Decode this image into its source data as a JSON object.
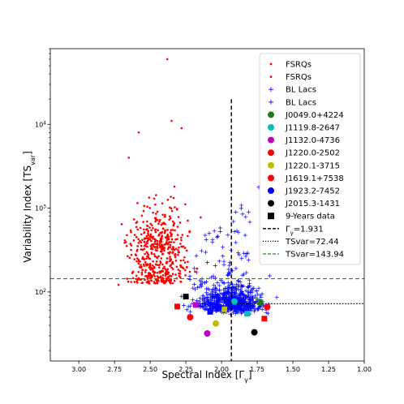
{
  "chart_data": {
    "type": "scatter",
    "xlabel": "Spectral Index [Γ",
    "xlabel_sub": "γ",
    "xlabel_end": "]",
    "ylabel": "Variability Index [TS",
    "ylabel_sub": "var",
    "ylabel_end": "]",
    "xlim": [
      3.2,
      1.0
    ],
    "ylim": [
      15,
      80000
    ],
    "y_scale": "log",
    "x_reversed": true,
    "grid": false,
    "legend_position": "top-right",
    "x_ticks": [
      "3.00",
      "2.75",
      "2.50",
      "2.25",
      "2.00",
      "1.75",
      "1.50",
      "1.25",
      "1.00"
    ],
    "x_tick_values": [
      3.0,
      2.75,
      2.5,
      2.25,
      2.0,
      1.75,
      1.5,
      1.25,
      1.0
    ],
    "y_ticks": [
      {
        "base": "10",
        "exp": "2",
        "value": 100
      },
      {
        "base": "10",
        "exp": "3",
        "value": 1000
      },
      {
        "base": "10",
        "exp": "4",
        "value": 10000
      }
    ],
    "lines": {
      "gamma_vertical": {
        "x": 1.931,
        "label": "Γγ=1.931",
        "label_main": "Γ",
        "label_sub": "γ",
        "label_rest": "=1.931",
        "color": "#000000",
        "style": "dashed"
      },
      "tsvar_72": {
        "y": 72.44,
        "x_from": 1.931,
        "label": "TSvar=72.44",
        "color": "#000000",
        "style": "dotted"
      },
      "tsvar_143": {
        "y": 143.94,
        "label": "TSvar=143.94",
        "color": "#2a8a2a",
        "style": "dashed"
      }
    },
    "legend": [
      {
        "label": "FSRQs",
        "marker": "dot",
        "color": "#ff0000"
      },
      {
        "label": "FSRQs",
        "marker": "dot",
        "color": "#ff0000"
      },
      {
        "label": "BL Lacs",
        "marker": "plus",
        "color": "#0000ff"
      },
      {
        "label": "BL Lacs",
        "marker": "plus",
        "color": "#0000ff"
      },
      {
        "label": "J0049.0+4224",
        "marker": "circle",
        "color": "#1a7a1a"
      },
      {
        "label": "J1119.8-2647",
        "marker": "circle",
        "color": "#00bfbf"
      },
      {
        "label": "J1132.0-4736",
        "marker": "circle",
        "color": "#bf00bf"
      },
      {
        "label": "J1220.0-2502",
        "marker": "circle",
        "color": "#ff0000"
      },
      {
        "label": "J1220.1-3715",
        "marker": "circle",
        "color": "#bfbf00"
      },
      {
        "label": "J1619.1+7538",
        "marker": "circle",
        "color": "#ff0000"
      },
      {
        "label": "J1923.2-7452",
        "marker": "circle",
        "color": "#0000ff"
      },
      {
        "label": "J2015.3-1431",
        "marker": "circle",
        "color": "#000000"
      },
      {
        "label": "9-Years data",
        "marker": "square",
        "color": "#000000"
      },
      {
        "label": "Γγ=1.931",
        "label_main": "Γ",
        "label_sub": "γ",
        "label_rest": "=1.931",
        "marker": "dashed-line",
        "color": "#000000"
      },
      {
        "label": "TSvar=72.44",
        "marker": "dotted-line",
        "color": "#000000"
      },
      {
        "label": "TSvar=143.94",
        "marker": "dashed-line",
        "color": "#2a8a2a"
      }
    ],
    "series": [
      {
        "name": "FSRQs",
        "marker": "dot",
        "color": "#ff0000",
        "x_range": [
          3.1,
          2.0
        ],
        "y_range": [
          50,
          60000
        ],
        "count": 520
      },
      {
        "name": "BL Lacs",
        "marker": "plus",
        "color": "#0000ff",
        "x_range": [
          2.6,
          1.25
        ],
        "y_range": [
          22,
          5500
        ],
        "count": 750
      }
    ],
    "sources": [
      {
        "name": "J0049.0+4224",
        "color": "#1a7a1a",
        "circle": [
          1.73,
          75
        ],
        "square": [
          1.73,
          75
        ]
      },
      {
        "name": "J1119.8-2647",
        "color": "#00bfbf",
        "circle": [
          1.91,
          77
        ],
        "square": [
          1.82,
          55
        ]
      },
      {
        "name": "J1132.0-4736",
        "color": "#bf00bf",
        "circle": [
          2.1,
          32
        ],
        "square": [
          2.18,
          70
        ]
      },
      {
        "name": "J1220.0-2502",
        "color": "#ff0000",
        "circle": [
          2.22,
          50
        ],
        "square": [
          2.31,
          67
        ]
      },
      {
        "name": "J1220.1-3715",
        "color": "#bfbf00",
        "circle": [
          2.04,
          42
        ],
        "square": [
          1.98,
          62
        ]
      },
      {
        "name": "J1619.1+7538",
        "color": "#ff0000",
        "circle": [
          1.68,
          66
        ],
        "square": [
          1.7,
          48
        ]
      },
      {
        "name": "J1923.2-7452",
        "color": "#0000ff",
        "circle": [
          2.02,
          66
        ],
        "square": [
          2.08,
          58
        ]
      },
      {
        "name": "J2015.3-1431",
        "color": "#000000",
        "circle": [
          1.77,
          33
        ],
        "square": [
          2.25,
          88
        ]
      }
    ]
  }
}
